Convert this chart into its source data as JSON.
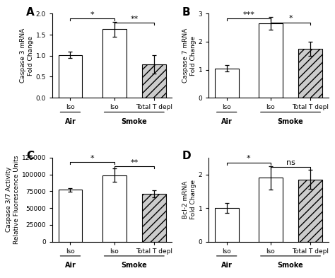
{
  "panels": [
    "A",
    "B",
    "C",
    "D"
  ],
  "x_labels": [
    "Iso",
    "Iso",
    "Total T depl"
  ],
  "group_labels": [
    "Air",
    "Smoke"
  ],
  "A": {
    "ylabel": "Caspase 3 mRNA\nFold Change",
    "values": [
      1.02,
      1.63,
      0.8
    ],
    "errors": [
      0.08,
      0.18,
      0.22
    ],
    "ylim": [
      0,
      2.0
    ],
    "yticks": [
      0.0,
      0.5,
      1.0,
      1.5,
      2.0
    ],
    "sig1": "*",
    "sig2": "**",
    "bh": 1.88,
    "bh2": 1.78
  },
  "B": {
    "ylabel": "Caspase 7 mRNA\nFold Change",
    "values": [
      1.05,
      2.65,
      1.75
    ],
    "errors": [
      0.12,
      0.22,
      0.25
    ],
    "ylim": [
      0,
      3.0
    ],
    "yticks": [
      0,
      1,
      2,
      3
    ],
    "sig1": "***",
    "sig2": "*",
    "bh": 2.82,
    "bh2": 2.68
  },
  "C": {
    "ylabel": "Caspase 3/7 Activity\nRelative Fluorescence Units",
    "values": [
      77000,
      99000,
      71000
    ],
    "errors": [
      2500,
      10000,
      5000
    ],
    "ylim": [
      0,
      125000
    ],
    "yticks": [
      0,
      25000,
      50000,
      75000,
      100000,
      125000
    ],
    "sig1": "*",
    "sig2": "**",
    "bh": 118000,
    "bh2": 112000
  },
  "D": {
    "ylabel": "Bcl-2 mRNA\nFold Change",
    "values": [
      1.0,
      1.9,
      1.85
    ],
    "errors": [
      0.15,
      0.35,
      0.28
    ],
    "ylim": [
      0,
      2.5
    ],
    "yticks": [
      0,
      1,
      2
    ],
    "sig1": "*",
    "sig2": "ns",
    "bh": 2.35,
    "bh2": 2.23
  },
  "bar_colors": [
    "white",
    "white",
    "#cccccc"
  ],
  "bar_hatches": [
    null,
    null,
    "///"
  ],
  "bar_edgecolor": "black",
  "background": "white"
}
